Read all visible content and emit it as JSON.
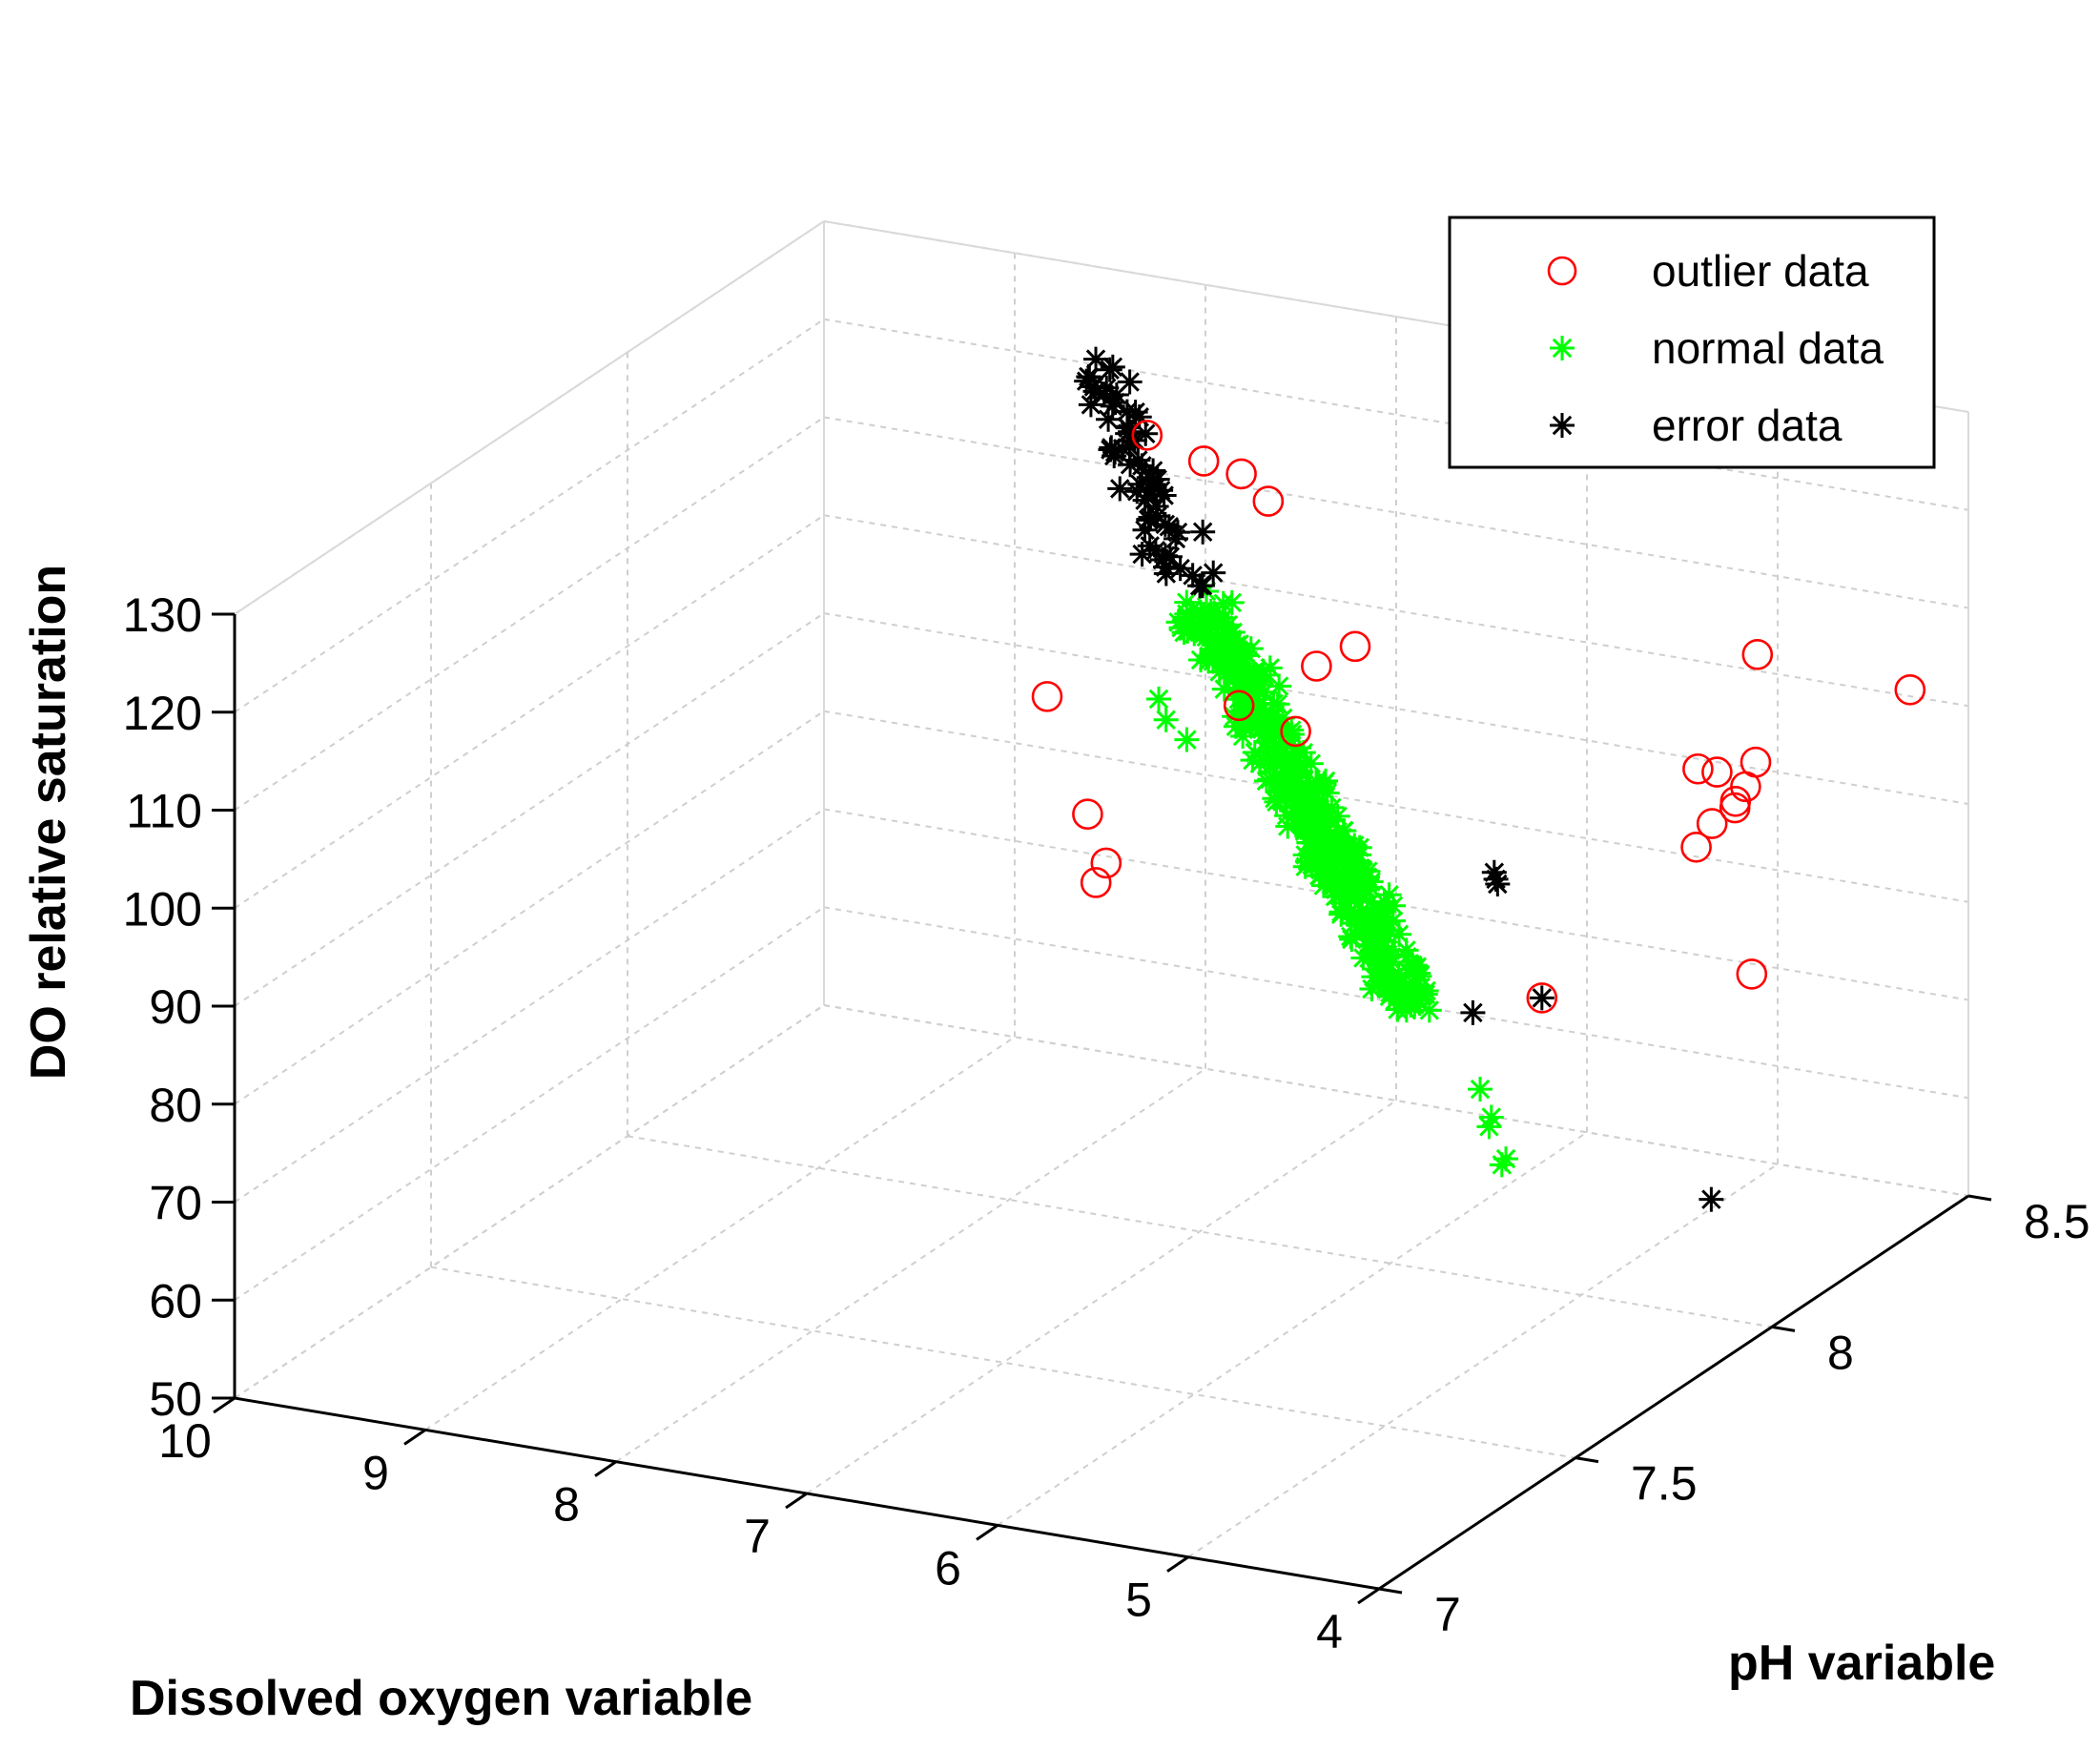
{
  "chart_data": {
    "type": "scatter3d",
    "xlabel": "Dissolved oxygen variable",
    "ylabel": "pH variable",
    "zlabel": "DO relative saturation",
    "xlim": [
      4,
      10
    ],
    "ylim": [
      7,
      8.5
    ],
    "zlim": [
      50,
      130
    ],
    "xticks": [
      "10",
      "9",
      "8",
      "7",
      "6",
      "5",
      "4"
    ],
    "yticks": [
      "7",
      "7.5",
      "8",
      "8.5"
    ],
    "zticks": [
      "50",
      "60",
      "70",
      "80",
      "90",
      "100",
      "110",
      "120",
      "130"
    ],
    "grid": true,
    "legend_position": "top-right",
    "legend": [
      {
        "label": "outlier data",
        "marker": "circle",
        "color": "#ff0000"
      },
      {
        "label": "normal data",
        "marker": "asterisk",
        "color": "#00ff00"
      },
      {
        "label": "error data",
        "marker": "asterisk",
        "color": "#000000"
      }
    ],
    "series": [
      {
        "name": "outlier data",
        "marker": "circle",
        "color": "#ff0000",
        "points": [
          [
            8.1,
            8.4,
            117
          ],
          [
            7.7,
            8.35,
            117
          ],
          [
            7.4,
            8.3,
            118
          ],
          [
            7.3,
            8.32,
            115
          ],
          [
            7.8,
            8.0,
            102
          ],
          [
            7.0,
            8.1,
            101
          ],
          [
            6.8,
            8.2,
            103
          ],
          [
            6.7,
            8.25,
            104
          ],
          [
            6.6,
            8.05,
            101
          ],
          [
            8.0,
            8.2,
            84
          ],
          [
            7.8,
            8.15,
            81
          ],
          [
            7.75,
            8.1,
            80.5
          ],
          [
            4.9,
            8.4,
            105
          ],
          [
            4.1,
            8.4,
            104
          ],
          [
            3.9,
            7.9,
            89
          ],
          [
            4.8,
            8.2,
            99
          ],
          [
            4.7,
            8.2,
            99
          ],
          [
            4.6,
            8.25,
            99
          ],
          [
            4.55,
            8.2,
            98
          ],
          [
            4.5,
            8.15,
            98
          ],
          [
            4.52,
            8.1,
            97
          ],
          [
            4.5,
            8.05,
            96
          ],
          [
            4.4,
            8.1,
            99
          ],
          [
            5.0,
            7.9,
            83
          ]
        ]
      },
      {
        "name": "normal data",
        "marker": "asterisk",
        "color": "#00ff00",
        "generator": {
          "from": [
            6.9,
            7.95,
            116
          ],
          "to": [
            4.95,
            7.55,
            91
          ],
          "count": 460,
          "spread": 2.2
        },
        "extra_points": [
          [
            4.5,
            7.5,
            86
          ],
          [
            4.4,
            7.48,
            84
          ],
          [
            4.35,
            7.45,
            84
          ],
          [
            4.2,
            7.42,
            82
          ],
          [
            4.18,
            7.4,
            82
          ],
          [
            6.7,
            7.75,
            112
          ],
          [
            6.6,
            7.72,
            111
          ],
          [
            6.45,
            7.7,
            110
          ]
        ]
      },
      {
        "name": "error data",
        "marker": "asterisk",
        "color": "#000000",
        "generator": {
          "from": [
            8.05,
            8.25,
            129
          ],
          "to": [
            6.95,
            7.95,
            117.5
          ],
          "count": 70,
          "spread": 1.5
        },
        "extra_points": [
          [
            5.25,
            7.9,
            95
          ],
          [
            5.2,
            7.88,
            95
          ],
          [
            5.15,
            7.86,
            95.2
          ],
          [
            4.95,
            7.7,
            87
          ],
          [
            5.0,
            7.9,
            83
          ],
          [
            3.7,
            7.7,
            72
          ]
        ]
      }
    ]
  }
}
